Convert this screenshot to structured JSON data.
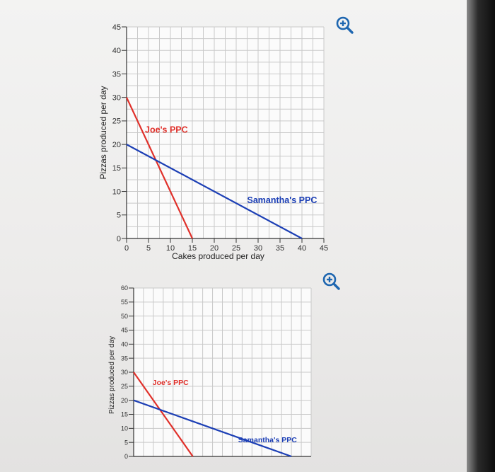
{
  "zoom_icon_color": "#1e66b0",
  "chart_data": [
    {
      "type": "line",
      "title": "",
      "xlabel": "Cakes produced per day",
      "ylabel": "Pizzas produced per day",
      "xlim": [
        0,
        45
      ],
      "ylim": [
        0,
        45
      ],
      "x_ticks": [
        0,
        5,
        10,
        15,
        20,
        25,
        30,
        35,
        40,
        45
      ],
      "y_ticks": [
        0,
        5,
        10,
        15,
        20,
        25,
        30,
        35,
        40,
        45
      ],
      "grid": true,
      "series": [
        {
          "name": "Joe's PPC",
          "color": "#e0302a",
          "x": [
            0,
            15
          ],
          "y": [
            30,
            0
          ]
        },
        {
          "name": "Samantha's PPC",
          "color": "#1c3fb5",
          "x": [
            0,
            40
          ],
          "y": [
            20,
            0
          ]
        }
      ]
    },
    {
      "type": "line",
      "title": "",
      "xlabel": "",
      "ylabel": "Pizzas produced per day",
      "xlim": [
        0,
        45
      ],
      "ylim": [
        0,
        60
      ],
      "x_ticks": [],
      "y_ticks": [
        0,
        5,
        10,
        15,
        20,
        25,
        30,
        35,
        40,
        45,
        50,
        55,
        60
      ],
      "grid": true,
      "series": [
        {
          "name": "Joe's PPC",
          "color": "#e0302a",
          "x": [
            0,
            15
          ],
          "y": [
            30,
            0
          ]
        },
        {
          "name": "Samantha's PPC",
          "color": "#1c3fb5",
          "x": [
            0,
            40
          ],
          "y": [
            20,
            0
          ]
        }
      ]
    }
  ]
}
